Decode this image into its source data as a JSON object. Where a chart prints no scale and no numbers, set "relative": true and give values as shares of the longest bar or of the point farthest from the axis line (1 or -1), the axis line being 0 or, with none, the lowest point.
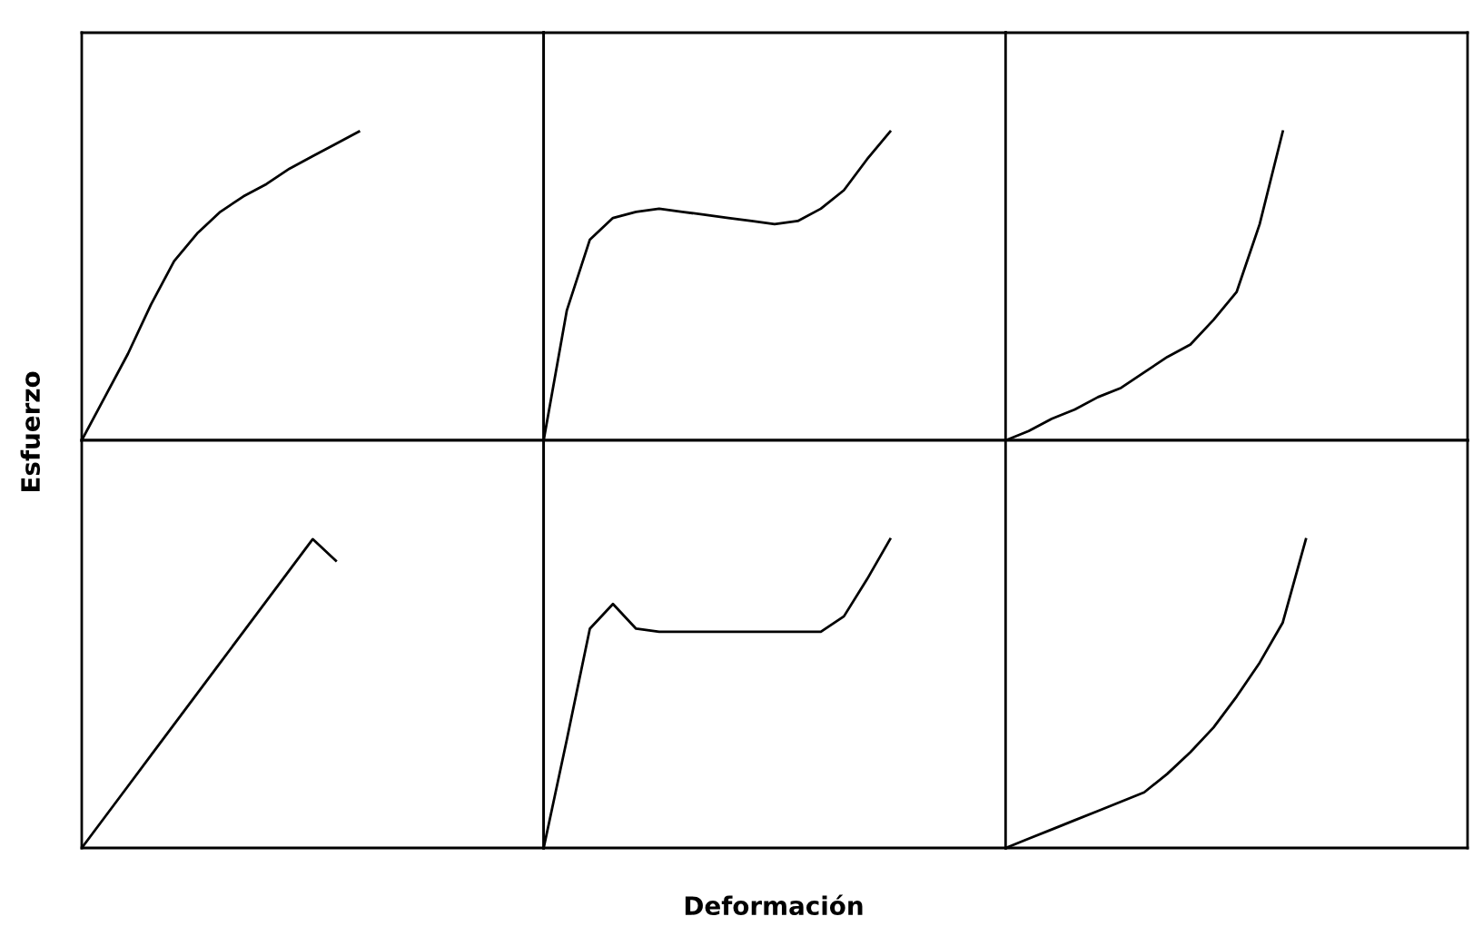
{
  "chart_data": [
    {
      "type": "line",
      "relative": true,
      "grid": false,
      "legend": false,
      "ylabel": "Esfuerzo",
      "categories": [
        null,
        null,
        null,
        null,
        null,
        null,
        null,
        null,
        null,
        null,
        null,
        null,
        null,
        null,
        null,
        null,
        null,
        null,
        null,
        null,
        null
      ],
      "series": [
        {
          "color": "#000000",
          "values": [
            0,
            0.14,
            0.28,
            0.44,
            0.58,
            0.67,
            0.74,
            0.79,
            0.83,
            0.88,
            0.92,
            0.96,
            1,
            null,
            null,
            null,
            null,
            null,
            null,
            null,
            null
          ]
        }
      ]
    },
    {
      "type": "line",
      "relative": true,
      "grid": false,
      "legend": false,
      "categories": [
        null,
        null,
        null,
        null,
        null,
        null,
        null,
        null,
        null,
        null,
        null,
        null,
        null,
        null,
        null,
        null,
        null,
        null,
        null,
        null,
        null
      ],
      "series": [
        {
          "color": "#000000",
          "values": [
            0,
            0.42,
            0.65,
            0.72,
            0.74,
            0.75,
            0.74,
            0.73,
            0.72,
            0.71,
            0.7,
            0.71,
            0.75,
            0.81,
            0.91,
            1,
            null,
            null,
            null,
            null,
            null
          ]
        }
      ]
    },
    {
      "type": "line",
      "relative": true,
      "grid": false,
      "legend": false,
      "categories": [
        null,
        null,
        null,
        null,
        null,
        null,
        null,
        null,
        null,
        null,
        null,
        null,
        null,
        null,
        null,
        null,
        null,
        null,
        null,
        null,
        null
      ],
      "series": [
        {
          "color": "#000000",
          "values": [
            0,
            0.03,
            0.07,
            0.1,
            0.14,
            0.17,
            0.22,
            0.27,
            0.31,
            0.39,
            0.48,
            0.7,
            1,
            null,
            null,
            null,
            null,
            null,
            null,
            null,
            null
          ]
        }
      ]
    },
    {
      "type": "line",
      "relative": true,
      "grid": false,
      "legend": false,
      "categories": [
        null,
        null,
        null,
        null,
        null,
        null,
        null,
        null,
        null,
        null,
        null,
        null,
        null,
        null,
        null,
        null,
        null,
        null,
        null,
        null,
        null
      ],
      "series": [
        {
          "color": "#000000",
          "values": [
            0,
            0.1,
            0.2,
            0.3,
            0.4,
            0.5,
            0.6,
            0.7,
            0.8,
            0.9,
            1,
            0.93,
            null,
            null,
            null,
            null,
            null,
            null,
            null,
            null,
            null
          ]
        }
      ]
    },
    {
      "type": "line",
      "relative": true,
      "grid": false,
      "legend": false,
      "xlabel": "Deformación",
      "categories": [
        null,
        null,
        null,
        null,
        null,
        null,
        null,
        null,
        null,
        null,
        null,
        null,
        null,
        null,
        null,
        null,
        null,
        null,
        null,
        null,
        null
      ],
      "series": [
        {
          "color": "#000000",
          "values": [
            0,
            0.35,
            0.71,
            0.79,
            0.71,
            0.7,
            0.7,
            0.7,
            0.7,
            0.7,
            0.7,
            0.7,
            0.7,
            0.75,
            0.87,
            1,
            null,
            null,
            null,
            null,
            null
          ]
        }
      ]
    },
    {
      "type": "line",
      "relative": true,
      "grid": false,
      "legend": false,
      "categories": [
        null,
        null,
        null,
        null,
        null,
        null,
        null,
        null,
        null,
        null,
        null,
        null,
        null,
        null,
        null,
        null,
        null,
        null,
        null,
        null,
        null
      ],
      "series": [
        {
          "color": "#000000",
          "values": [
            0,
            0.03,
            0.06,
            0.09,
            0.12,
            0.15,
            0.18,
            0.24,
            0.31,
            0.39,
            0.49,
            0.6,
            0.73,
            1,
            null,
            null,
            null,
            null,
            null,
            null,
            null
          ]
        }
      ]
    }
  ]
}
